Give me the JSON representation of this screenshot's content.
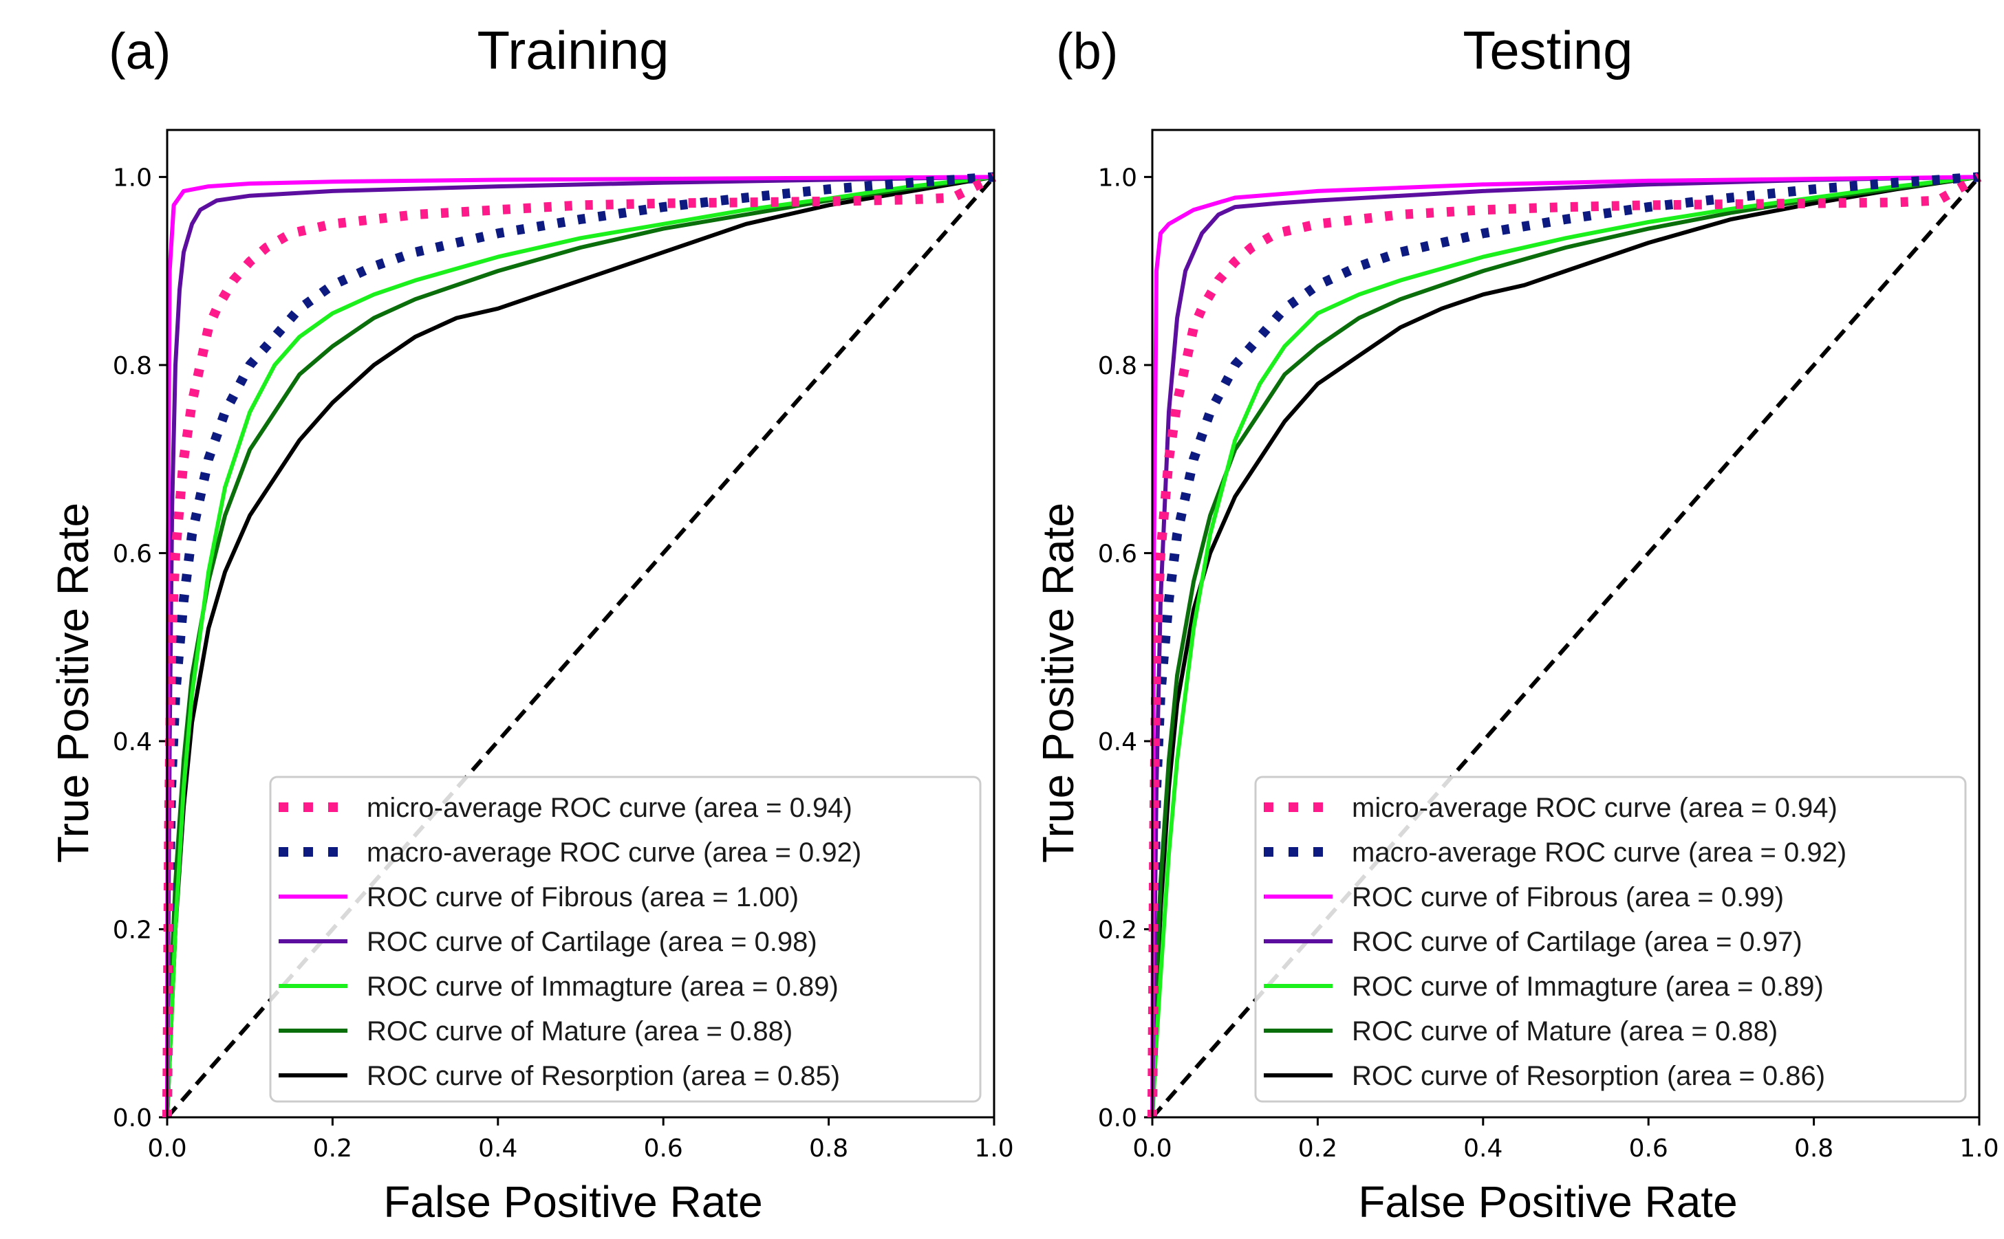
{
  "chart_data": [
    {
      "type": "line",
      "panel_label": "(a)",
      "title": "Training",
      "xlabel": "False Positive Rate",
      "ylabel": "True Positive Rate",
      "xlim": [
        0,
        1
      ],
      "ylim": [
        0,
        1.05
      ],
      "xticks": [
        "0.0",
        "0.2",
        "0.4",
        "0.6",
        "0.8",
        "1.0"
      ],
      "yticks": [
        "0.0",
        "0.2",
        "0.4",
        "0.6",
        "0.8",
        "1.0"
      ],
      "legend_position": "lower-right",
      "series": [
        {
          "name": "micro-average ROC curve (area = 0.94)",
          "color": "#ff1a8c",
          "style": "dotted",
          "x": [
            0,
            0.002,
            0.005,
            0.01,
            0.015,
            0.02,
            0.03,
            0.04,
            0.05,
            0.06,
            0.08,
            0.1,
            0.12,
            0.15,
            0.2,
            0.25,
            0.3,
            0.4,
            0.5,
            0.6,
            0.7,
            0.8,
            0.9,
            0.95,
            1.0
          ],
          "y": [
            0,
            0.3,
            0.5,
            0.6,
            0.65,
            0.7,
            0.76,
            0.8,
            0.84,
            0.86,
            0.89,
            0.91,
            0.925,
            0.94,
            0.95,
            0.955,
            0.96,
            0.965,
            0.97,
            0.972,
            0.973,
            0.974,
            0.976,
            0.978,
            1.0
          ]
        },
        {
          "name": "macro-average ROC curve (area = 0.92)",
          "color": "#0d1a80",
          "style": "dotted",
          "x": [
            0,
            0.002,
            0.005,
            0.01,
            0.02,
            0.03,
            0.05,
            0.07,
            0.1,
            0.13,
            0.16,
            0.2,
            0.25,
            0.3,
            0.4,
            0.5,
            0.6,
            0.7,
            0.8,
            0.9,
            1.0
          ],
          "y": [
            0,
            0.2,
            0.35,
            0.45,
            0.55,
            0.62,
            0.7,
            0.75,
            0.8,
            0.83,
            0.86,
            0.885,
            0.905,
            0.92,
            0.94,
            0.955,
            0.968,
            0.978,
            0.987,
            0.994,
            1.0
          ]
        },
        {
          "name": "ROC curve of Fibrous (area = 1.00)",
          "color": "#ff00ff",
          "style": "solid",
          "x": [
            0,
            0.001,
            0.003,
            0.008,
            0.02,
            0.05,
            0.1,
            0.2,
            0.4,
            0.6,
            0.8,
            1.0
          ],
          "y": [
            0,
            0.6,
            0.9,
            0.97,
            0.985,
            0.99,
            0.993,
            0.995,
            0.997,
            0.998,
            0.999,
            1.0
          ]
        },
        {
          "name": "ROC curve of Cartilage (area = 0.98)",
          "color": "#5c0f9e",
          "style": "solid",
          "x": [
            0,
            0.003,
            0.006,
            0.01,
            0.015,
            0.02,
            0.03,
            0.04,
            0.06,
            0.1,
            0.2,
            0.4,
            0.6,
            0.8,
            1.0
          ],
          "y": [
            0,
            0.4,
            0.65,
            0.8,
            0.88,
            0.92,
            0.95,
            0.965,
            0.975,
            0.98,
            0.985,
            0.99,
            0.994,
            0.997,
            1.0
          ]
        },
        {
          "name": "ROC curve of Immagture (area = 0.89)",
          "color": "#1cf01c",
          "style": "solid",
          "x": [
            0,
            0.005,
            0.01,
            0.02,
            0.03,
            0.05,
            0.07,
            0.1,
            0.13,
            0.16,
            0.2,
            0.25,
            0.3,
            0.4,
            0.5,
            0.6,
            0.7,
            0.8,
            0.9,
            1.0
          ],
          "y": [
            0,
            0.1,
            0.2,
            0.35,
            0.45,
            0.58,
            0.67,
            0.75,
            0.8,
            0.83,
            0.855,
            0.875,
            0.89,
            0.915,
            0.935,
            0.95,
            0.965,
            0.977,
            0.99,
            1.0
          ]
        },
        {
          "name": "ROC curve of Mature (area = 0.88)",
          "color": "#0a6e0a",
          "style": "solid",
          "x": [
            0,
            0.005,
            0.01,
            0.02,
            0.03,
            0.05,
            0.07,
            0.1,
            0.13,
            0.16,
            0.2,
            0.25,
            0.3,
            0.4,
            0.5,
            0.6,
            0.7,
            0.8,
            0.9,
            1.0
          ],
          "y": [
            0,
            0.15,
            0.25,
            0.38,
            0.47,
            0.57,
            0.64,
            0.71,
            0.75,
            0.79,
            0.82,
            0.85,
            0.87,
            0.9,
            0.925,
            0.945,
            0.96,
            0.975,
            0.988,
            1.0
          ]
        },
        {
          "name": "ROC curve of Resorption (area = 0.85)",
          "color": "#000000",
          "style": "solid",
          "x": [
            0,
            0.005,
            0.01,
            0.02,
            0.03,
            0.05,
            0.07,
            0.1,
            0.13,
            0.16,
            0.2,
            0.25,
            0.3,
            0.35,
            0.4,
            0.45,
            0.5,
            0.6,
            0.7,
            0.8,
            0.9,
            1.0
          ],
          "y": [
            0,
            0.1,
            0.2,
            0.33,
            0.42,
            0.52,
            0.58,
            0.64,
            0.68,
            0.72,
            0.76,
            0.8,
            0.83,
            0.85,
            0.86,
            0.875,
            0.89,
            0.92,
            0.95,
            0.97,
            0.985,
            1.0
          ]
        },
        {
          "name": "chance",
          "color": "#000000",
          "style": "dashed",
          "x": [
            0,
            1
          ],
          "y": [
            0,
            1
          ]
        }
      ]
    },
    {
      "type": "line",
      "panel_label": "(b)",
      "title": "Testing",
      "xlabel": "False Positive Rate",
      "ylabel": "True Positive Rate",
      "xlim": [
        0,
        1
      ],
      "ylim": [
        0,
        1.05
      ],
      "xticks": [
        "0.0",
        "0.2",
        "0.4",
        "0.6",
        "0.8",
        "1.0"
      ],
      "yticks": [
        "0.0",
        "0.2",
        "0.4",
        "0.6",
        "0.8",
        "1.0"
      ],
      "legend_position": "lower-right",
      "series": [
        {
          "name": "micro-average ROC curve (area = 0.94)",
          "color": "#ff1a8c",
          "style": "dotted",
          "x": [
            0,
            0.002,
            0.005,
            0.01,
            0.015,
            0.02,
            0.03,
            0.04,
            0.05,
            0.06,
            0.08,
            0.1,
            0.12,
            0.15,
            0.2,
            0.25,
            0.3,
            0.4,
            0.5,
            0.6,
            0.7,
            0.8,
            0.9,
            0.95,
            1.0
          ],
          "y": [
            0,
            0.3,
            0.5,
            0.6,
            0.65,
            0.7,
            0.76,
            0.8,
            0.84,
            0.86,
            0.89,
            0.91,
            0.925,
            0.94,
            0.95,
            0.955,
            0.96,
            0.965,
            0.968,
            0.97,
            0.971,
            0.972,
            0.973,
            0.975,
            1.0
          ]
        },
        {
          "name": "macro-average ROC curve (area = 0.92)",
          "color": "#0d1a80",
          "style": "dotted",
          "x": [
            0,
            0.002,
            0.005,
            0.01,
            0.02,
            0.03,
            0.05,
            0.07,
            0.1,
            0.13,
            0.16,
            0.2,
            0.25,
            0.3,
            0.4,
            0.5,
            0.6,
            0.7,
            0.8,
            0.9,
            1.0
          ],
          "y": [
            0,
            0.2,
            0.35,
            0.45,
            0.55,
            0.62,
            0.7,
            0.75,
            0.8,
            0.83,
            0.86,
            0.885,
            0.905,
            0.92,
            0.94,
            0.955,
            0.968,
            0.978,
            0.987,
            0.994,
            1.0
          ]
        },
        {
          "name": "ROC curve of Fibrous (area = 0.99)",
          "color": "#ff00ff",
          "style": "solid",
          "x": [
            0,
            0.002,
            0.005,
            0.01,
            0.02,
            0.05,
            0.1,
            0.2,
            0.4,
            0.6,
            0.8,
            1.0
          ],
          "y": [
            0,
            0.6,
            0.9,
            0.94,
            0.95,
            0.965,
            0.978,
            0.985,
            0.992,
            0.996,
            0.998,
            1.0
          ]
        },
        {
          "name": "ROC curve of Cartilage (area = 0.97)",
          "color": "#5c0f9e",
          "style": "solid",
          "x": [
            0,
            0.005,
            0.01,
            0.02,
            0.03,
            0.04,
            0.06,
            0.08,
            0.1,
            0.15,
            0.2,
            0.4,
            0.6,
            0.8,
            1.0
          ],
          "y": [
            0,
            0.35,
            0.55,
            0.75,
            0.85,
            0.9,
            0.94,
            0.96,
            0.968,
            0.972,
            0.975,
            0.985,
            0.992,
            0.997,
            1.0
          ]
        },
        {
          "name": "ROC curve of Immagture (area = 0.89)",
          "color": "#1cf01c",
          "style": "solid",
          "x": [
            0,
            0.005,
            0.01,
            0.02,
            0.03,
            0.05,
            0.07,
            0.1,
            0.13,
            0.16,
            0.2,
            0.25,
            0.3,
            0.4,
            0.5,
            0.6,
            0.7,
            0.8,
            0.9,
            1.0
          ],
          "y": [
            0,
            0.08,
            0.15,
            0.28,
            0.38,
            0.52,
            0.62,
            0.72,
            0.78,
            0.82,
            0.855,
            0.875,
            0.89,
            0.915,
            0.935,
            0.952,
            0.966,
            0.978,
            0.99,
            1.0
          ]
        },
        {
          "name": "ROC curve of Mature (area = 0.88)",
          "color": "#0a6e0a",
          "style": "solid",
          "x": [
            0,
            0.005,
            0.01,
            0.02,
            0.03,
            0.05,
            0.07,
            0.1,
            0.13,
            0.16,
            0.2,
            0.25,
            0.3,
            0.4,
            0.5,
            0.6,
            0.7,
            0.8,
            0.9,
            1.0
          ],
          "y": [
            0,
            0.15,
            0.25,
            0.38,
            0.47,
            0.57,
            0.64,
            0.71,
            0.75,
            0.79,
            0.82,
            0.85,
            0.87,
            0.9,
            0.925,
            0.945,
            0.962,
            0.976,
            0.988,
            1.0
          ]
        },
        {
          "name": "ROC curve of Resorption (area = 0.86)",
          "color": "#000000",
          "style": "solid",
          "x": [
            0,
            0.005,
            0.01,
            0.02,
            0.03,
            0.05,
            0.07,
            0.1,
            0.13,
            0.16,
            0.2,
            0.25,
            0.3,
            0.35,
            0.4,
            0.45,
            0.5,
            0.6,
            0.7,
            0.8,
            0.9,
            1.0
          ],
          "y": [
            0,
            0.12,
            0.22,
            0.35,
            0.44,
            0.54,
            0.6,
            0.66,
            0.7,
            0.74,
            0.78,
            0.81,
            0.84,
            0.86,
            0.875,
            0.885,
            0.9,
            0.93,
            0.955,
            0.972,
            0.987,
            1.0
          ]
        },
        {
          "name": "chance",
          "color": "#000000",
          "style": "dashed",
          "x": [
            0,
            1
          ],
          "y": [
            0,
            1
          ]
        }
      ]
    }
  ]
}
